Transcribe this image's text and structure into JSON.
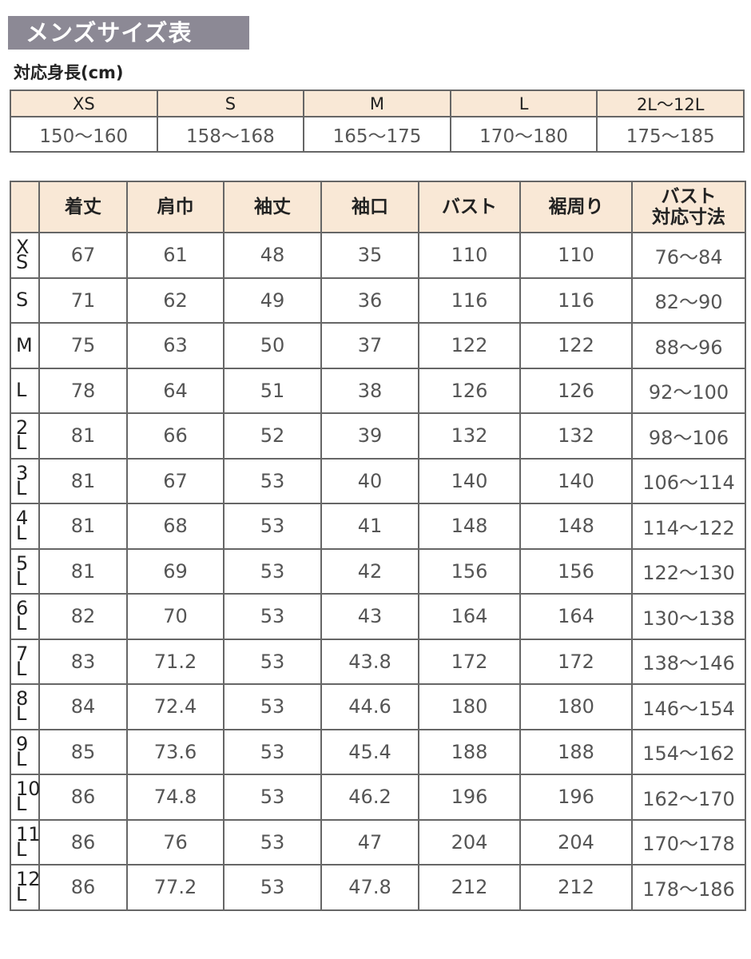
{
  "title": "メンズサイズ表",
  "height_label": "対応身長(cm)",
  "height_table": {
    "sizes": [
      "XS",
      "S",
      "M",
      "L",
      "2L〜12L"
    ],
    "ranges": [
      "150〜160",
      "158〜168",
      "165〜175",
      "170〜180",
      "175〜185"
    ]
  },
  "size_table": {
    "headers": [
      "",
      "着丈",
      "肩巾",
      "袖丈",
      "袖口",
      "バスト",
      "裾周り",
      "バスト\n対応寸法"
    ],
    "rows": [
      {
        "size": "XS",
        "values": [
          "67",
          "61",
          "48",
          "35",
          "110",
          "110",
          "76〜84"
        ]
      },
      {
        "size": "S",
        "values": [
          "71",
          "62",
          "49",
          "36",
          "116",
          "116",
          "82〜90"
        ]
      },
      {
        "size": "M",
        "values": [
          "75",
          "63",
          "50",
          "37",
          "122",
          "122",
          "88〜96"
        ]
      },
      {
        "size": "L",
        "values": [
          "78",
          "64",
          "51",
          "38",
          "126",
          "126",
          "92〜100"
        ]
      },
      {
        "size": "2L",
        "values": [
          "81",
          "66",
          "52",
          "39",
          "132",
          "132",
          "98〜106"
        ]
      },
      {
        "size": "3L",
        "values": [
          "81",
          "67",
          "53",
          "40",
          "140",
          "140",
          "106〜114"
        ]
      },
      {
        "size": "4L",
        "values": [
          "81",
          "68",
          "53",
          "41",
          "148",
          "148",
          "114〜122"
        ]
      },
      {
        "size": "5L",
        "values": [
          "81",
          "69",
          "53",
          "42",
          "156",
          "156",
          "122〜130"
        ]
      },
      {
        "size": "6L",
        "values": [
          "82",
          "70",
          "53",
          "43",
          "164",
          "164",
          "130〜138"
        ]
      },
      {
        "size": "7L",
        "values": [
          "83",
          "71.2",
          "53",
          "43.8",
          "172",
          "172",
          "138〜146"
        ]
      },
      {
        "size": "8L",
        "values": [
          "84",
          "72.4",
          "53",
          "44.6",
          "180",
          "180",
          "146〜154"
        ]
      },
      {
        "size": "9L",
        "values": [
          "85",
          "73.6",
          "53",
          "45.4",
          "188",
          "188",
          "154〜162"
        ]
      },
      {
        "size": "10L",
        "values": [
          "86",
          "74.8",
          "53",
          "46.2",
          "196",
          "196",
          "162〜170"
        ]
      },
      {
        "size": "11L",
        "values": [
          "86",
          "76",
          "53",
          "47",
          "204",
          "204",
          "170〜178"
        ]
      },
      {
        "size": "12L",
        "values": [
          "86",
          "77.2",
          "53",
          "47.8",
          "212",
          "212",
          "178〜186"
        ]
      }
    ]
  },
  "colors": {
    "title_bg": "#8c8995",
    "header_bg": "#f9e8d6",
    "border": "#666666"
  }
}
